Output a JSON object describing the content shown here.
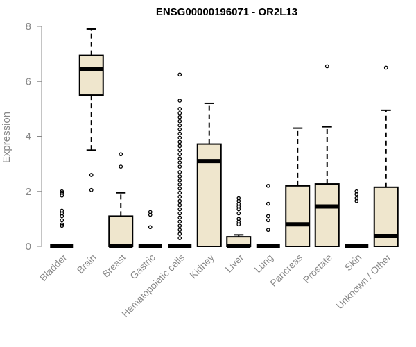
{
  "chart_data": {
    "type": "box",
    "title": "ENSG00000196071 - OR2L13",
    "xlabel": "",
    "ylabel": "Expression",
    "ylim": [
      0,
      8
    ],
    "yticks": [
      0,
      2,
      4,
      6,
      8
    ],
    "colors": {
      "box_fill": "#efe6cd",
      "stroke": "#000000",
      "axis": "#888888"
    },
    "categories": [
      "Bladder",
      "Brain",
      "Breast",
      "Gastric",
      "Hematopoietic cells",
      "Kidney",
      "Liver",
      "Lung",
      "Pancreas",
      "Prostate",
      "Skin",
      "Unknown / Other"
    ],
    "boxes": [
      {
        "category": "Bladder",
        "q1": 0,
        "median": 0,
        "q3": 0,
        "whisker_low": 0,
        "whisker_high": 0,
        "outliers": [
          0.75,
          0.8,
          0.95,
          1.1,
          1.2,
          1.3,
          1.85,
          1.95,
          2.0
        ]
      },
      {
        "category": "Brain",
        "q1": 5.5,
        "median": 6.45,
        "q3": 6.95,
        "whisker_low": 3.5,
        "whisker_high": 7.9,
        "outliers": [
          2.05,
          2.6
        ]
      },
      {
        "category": "Breast",
        "q1": 0,
        "median": 0,
        "q3": 1.1,
        "whisker_low": 0,
        "whisker_high": 1.95,
        "outliers": [
          2.9,
          3.35
        ]
      },
      {
        "category": "Gastric",
        "q1": 0,
        "median": 0,
        "q3": 0,
        "whisker_low": 0,
        "whisker_high": 0,
        "outliers": [
          0.7,
          1.15,
          1.25
        ]
      },
      {
        "category": "Hematopoietic cells",
        "q1": 0,
        "median": 0,
        "q3": 0,
        "whisker_low": 0,
        "whisker_high": 0,
        "outliers": [
          0.3,
          0.45,
          0.6,
          0.75,
          0.9,
          1.05,
          1.2,
          1.35,
          1.5,
          1.65,
          1.8,
          1.95,
          2.1,
          2.25,
          2.4,
          2.55,
          2.7,
          2.9,
          3.05,
          3.2,
          3.35,
          3.5,
          3.65,
          3.8,
          3.95,
          4.1,
          4.25,
          4.4,
          4.55,
          4.7,
          4.85,
          5.0,
          5.3,
          6.25
        ]
      },
      {
        "category": "Kidney",
        "q1": 0,
        "median": 3.1,
        "q3": 3.72,
        "whisker_low": 0,
        "whisker_high": 5.2,
        "outliers": []
      },
      {
        "category": "Liver",
        "q1": 0,
        "median": 0,
        "q3": 0.35,
        "whisker_low": 0,
        "whisker_high": 0.42,
        "outliers": [
          0.8,
          0.9,
          1.0,
          1.2,
          1.35,
          1.45,
          1.55,
          1.65,
          1.75
        ]
      },
      {
        "category": "Lung",
        "q1": 0,
        "median": 0,
        "q3": 0,
        "whisker_low": 0,
        "whisker_high": 0,
        "outliers": [
          0.6,
          0.95,
          1.1,
          1.55,
          2.2
        ]
      },
      {
        "category": "Pancreas",
        "q1": 0,
        "median": 0.8,
        "q3": 2.2,
        "whisker_low": 0,
        "whisker_high": 4.3,
        "outliers": []
      },
      {
        "category": "Prostate",
        "q1": 0,
        "median": 1.45,
        "q3": 2.27,
        "whisker_low": 0,
        "whisker_high": 4.35,
        "outliers": [
          6.55
        ]
      },
      {
        "category": "Skin",
        "q1": 0,
        "median": 0,
        "q3": 0,
        "whisker_low": 0,
        "whisker_high": 0,
        "outliers": [
          1.65,
          1.75,
          1.9,
          2.0
        ]
      },
      {
        "category": "Unknown / Other",
        "q1": 0,
        "median": 0.38,
        "q3": 2.15,
        "whisker_low": 0,
        "whisker_high": 4.95,
        "outliers": [
          6.5
        ]
      }
    ]
  }
}
